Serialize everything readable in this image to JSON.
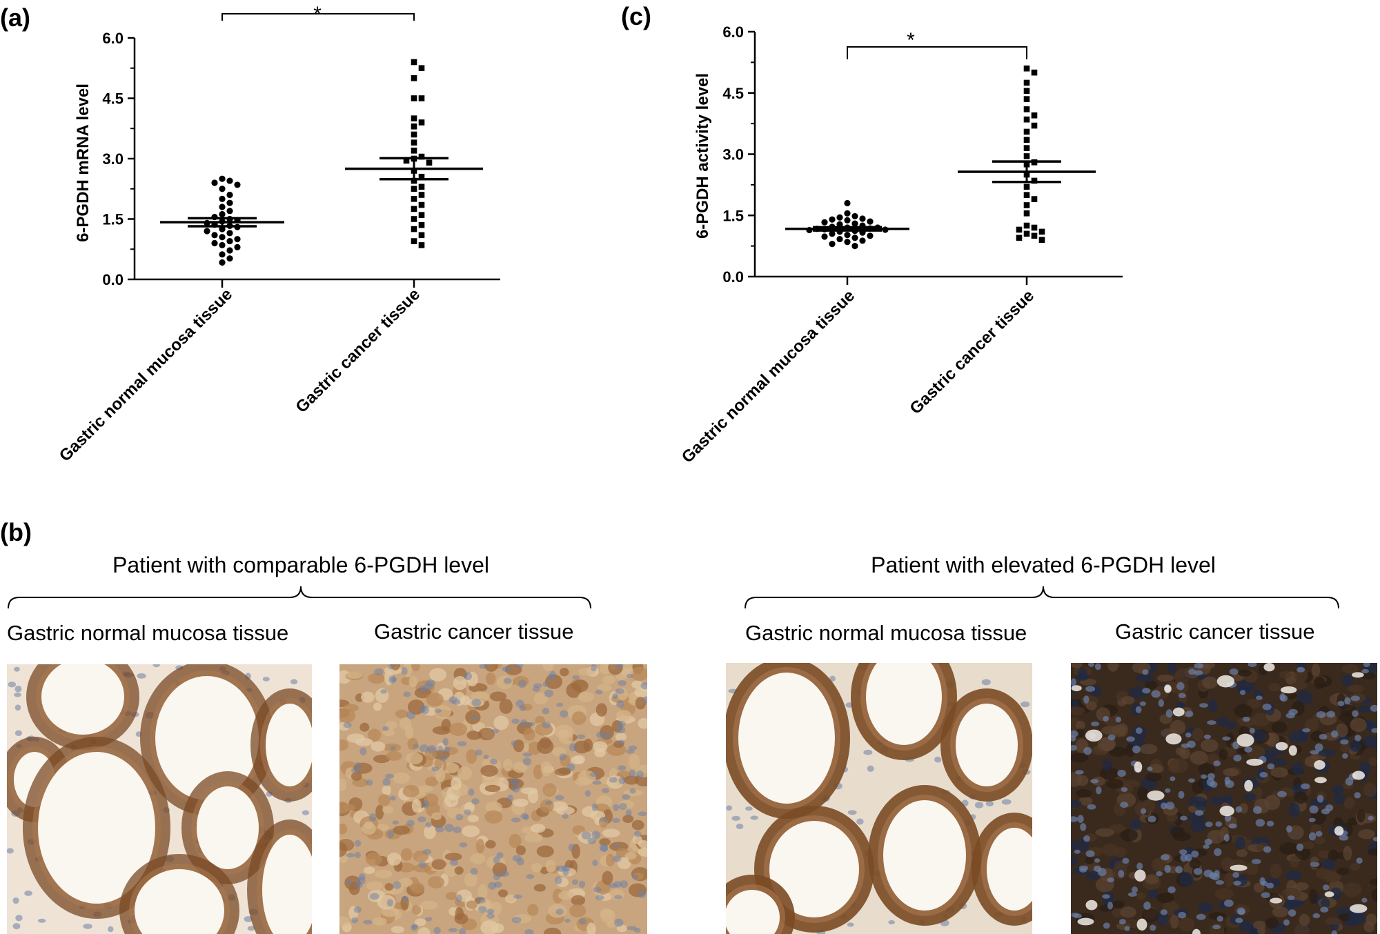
{
  "panels": {
    "a": "(a)",
    "b": "(b)",
    "c": "(c)"
  },
  "chart_data": [
    {
      "id": "a",
      "type": "scatter",
      "ylabel": "6-PGDH mRNA level",
      "ylim": [
        0,
        6
      ],
      "yticks": [
        "0.0",
        "1.5",
        "3.0",
        "4.5",
        "6.0"
      ],
      "categories": [
        "Gastric normal mucosa tissue",
        "Gastric cancer tissue"
      ],
      "significance": "*",
      "series": [
        {
          "marker": "circle",
          "mean": 1.42,
          "sem": 0.1,
          "values": [
            2.5,
            2.45,
            2.4,
            2.35,
            2.25,
            2.1,
            2.0,
            1.9,
            1.8,
            1.7,
            1.62,
            1.55,
            1.5,
            1.47,
            1.44,
            1.4,
            1.36,
            1.33,
            1.3,
            1.25,
            1.2,
            1.15,
            1.1,
            1.05,
            1.0,
            0.95,
            0.9,
            0.85,
            0.8,
            0.72,
            0.62,
            0.52,
            0.42
          ]
        },
        {
          "marker": "square",
          "mean": 2.75,
          "sem": 0.26,
          "values": [
            5.4,
            5.25,
            5.0,
            4.5,
            4.5,
            4.0,
            3.9,
            3.8,
            3.6,
            3.4,
            3.2,
            3.05,
            3.0,
            2.95,
            2.9,
            2.7,
            2.55,
            2.45,
            2.3,
            2.25,
            2.1,
            2.0,
            1.85,
            1.75,
            1.6,
            1.5,
            1.35,
            1.25,
            1.1,
            0.95,
            0.85
          ]
        }
      ]
    },
    {
      "id": "c",
      "type": "scatter",
      "ylabel": "6-PGDH activity level",
      "ylim": [
        0,
        6
      ],
      "yticks": [
        "0.0",
        "1.5",
        "3.0",
        "4.5",
        "6.0"
      ],
      "categories": [
        "Gastric normal mucosa tissue",
        "Gastric cancer tissue"
      ],
      "significance": "*",
      "series": [
        {
          "marker": "circle",
          "mean": 1.17,
          "sem": 0.04,
          "values": [
            1.8,
            1.55,
            1.48,
            1.45,
            1.42,
            1.4,
            1.38,
            1.35,
            1.33,
            1.3,
            1.28,
            1.25,
            1.22,
            1.2,
            1.2,
            1.18,
            1.17,
            1.16,
            1.15,
            1.14,
            1.12,
            1.1,
            1.08,
            1.05,
            1.02,
            1.0,
            0.98,
            0.95,
            0.92,
            0.88,
            0.85,
            0.8,
            0.75
          ]
        },
        {
          "marker": "square",
          "mean": 2.57,
          "sem": 0.25,
          "values": [
            5.1,
            5.0,
            4.75,
            4.55,
            4.35,
            4.1,
            3.95,
            3.85,
            3.7,
            3.55,
            3.35,
            3.15,
            2.95,
            2.8,
            2.75,
            2.5,
            2.35,
            2.2,
            2.0,
            1.9,
            1.75,
            1.55,
            1.25,
            1.2,
            1.15,
            1.1,
            1.05,
            1.0,
            0.95,
            0.9
          ]
        }
      ]
    }
  ],
  "panel_b": {
    "groups": [
      {
        "header": "Patient with comparable 6-PGDH level",
        "captions": [
          "Gastric normal mucosa tissue",
          "Gastric cancer tissue"
        ]
      },
      {
        "header": "Patient with elevated 6-PGDH level",
        "captions": [
          "Gastric normal mucosa tissue",
          "Gastric cancer tissue"
        ]
      }
    ]
  },
  "colors": {
    "ink": "#000000",
    "normal_bg": "#efe3d6",
    "normal_stain": "#7a4a24",
    "comparable_cancer_bg": "#c8a57e",
    "elevated_cancer_bg": "#3a2a1e",
    "nucleus": "#6b7fa6"
  }
}
